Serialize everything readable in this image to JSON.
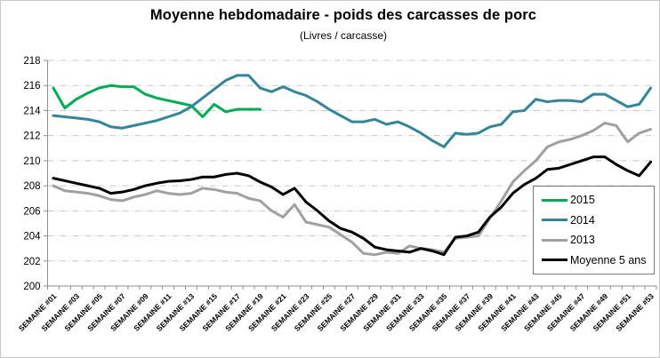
{
  "title": "Moyenne hebdomadaire - poids des carcasses de porc",
  "subtitle": "(Livres / carcasse)",
  "legend": {
    "items": [
      {
        "label": "2015",
        "color": "#00b050"
      },
      {
        "label": "2014",
        "color": "#31859c"
      },
      {
        "label": "2013",
        "color": "#a0a0a0"
      },
      {
        "label": "Moyenne 5 ans",
        "color": "#000000"
      }
    ]
  },
  "chart_data": {
    "type": "line",
    "title": "Moyenne hebdomadaire - poids des carcasses de porc",
    "subtitle": "(Livres / carcasse)",
    "xlabel": "",
    "ylabel": "",
    "ylim": [
      200,
      218
    ],
    "y_ticks": [
      200,
      202,
      204,
      206,
      208,
      210,
      212,
      214,
      216,
      218
    ],
    "x_weeks": 53,
    "x_tick_labels": [
      "SEMAINE #01",
      "SEMAINE #03",
      "SEMAINE #05",
      "SEMAINE #07",
      "SEMAINE #09",
      "SEMAINE #11",
      "SEMAINE #13",
      "SEMAINE #15",
      "SEMAINE #17",
      "SEMAINE #19",
      "SEMAINE #21",
      "SEMAINE #23",
      "SEMAINE #25",
      "SEMAINE #27",
      "SEMAINE #29",
      "SEMAINE #31",
      "SEMAINE #33",
      "SEMAINE #35",
      "SEMAINE #37",
      "SEMAINE #39",
      "SEMAINE #41",
      "SEMAINE #43",
      "SEMAINE #45",
      "SEMAINE #47",
      "SEMAINE #49",
      "SEMAINE #51",
      "SEMAINE #53"
    ],
    "grid": "horizontal dash-dot",
    "legend_position": "boxed, middle-right",
    "series": [
      {
        "name": "2015",
        "color": "#00b050",
        "start_week": 1,
        "values": [
          215.8,
          214.2,
          214.9,
          215.4,
          215.8,
          216.0,
          215.9,
          215.9,
          215.3,
          215.0,
          214.8,
          214.6,
          214.4,
          213.5,
          214.5,
          213.9,
          214.1,
          214.1,
          214.1
        ]
      },
      {
        "name": "2014",
        "color": "#31859c",
        "start_week": 1,
        "values": [
          213.6,
          213.5,
          213.4,
          213.3,
          213.1,
          212.7,
          212.6,
          212.8,
          213.0,
          213.2,
          213.5,
          213.8,
          214.3,
          215.0,
          215.7,
          216.4,
          216.8,
          216.8,
          215.8,
          215.5,
          215.9,
          215.5,
          215.2,
          214.7,
          214.1,
          213.6,
          213.1,
          213.1,
          213.3,
          212.9,
          213.1,
          212.7,
          212.2,
          211.6,
          211.1,
          212.2,
          212.1,
          212.2,
          212.7,
          212.9,
          213.9,
          214.0,
          214.9,
          214.7,
          214.8,
          214.8,
          214.7,
          215.3,
          215.3,
          214.8,
          214.3,
          214.5,
          215.8
        ]
      },
      {
        "name": "2013",
        "color": "#a0a0a0",
        "start_week": 1,
        "values": [
          208.0,
          207.6,
          207.5,
          207.4,
          207.2,
          206.9,
          206.8,
          207.1,
          207.3,
          207.6,
          207.4,
          207.3,
          207.4,
          207.8,
          207.7,
          207.5,
          207.4,
          207.0,
          206.8,
          206.0,
          205.5,
          206.5,
          205.1,
          204.9,
          204.7,
          204.1,
          203.5,
          202.6,
          202.5,
          202.7,
          202.6,
          203.2,
          203.0,
          202.9,
          202.7,
          203.8,
          203.9,
          204.0,
          205.4,
          206.8,
          208.3,
          209.2,
          210.0,
          211.1,
          211.5,
          211.7,
          212.0,
          212.4,
          213.0,
          212.8,
          211.5,
          212.2,
          212.5
        ]
      },
      {
        "name": "Moyenne 5 ans",
        "color": "#000000",
        "start_week": 1,
        "values": [
          208.6,
          208.4,
          208.2,
          208.0,
          207.8,
          207.4,
          207.5,
          207.7,
          208.0,
          208.2,
          208.35,
          208.4,
          208.5,
          208.7,
          208.7,
          208.9,
          209.0,
          208.8,
          208.3,
          207.9,
          207.3,
          207.8,
          206.7,
          206.0,
          205.2,
          204.6,
          204.3,
          203.8,
          203.1,
          202.9,
          202.8,
          202.7,
          203.0,
          202.8,
          202.5,
          203.9,
          204.0,
          204.3,
          205.5,
          206.3,
          207.4,
          208.1,
          208.6,
          209.3,
          209.4,
          209.7,
          210.0,
          210.3,
          210.3,
          209.7,
          209.2,
          208.8,
          209.9
        ]
      }
    ]
  }
}
